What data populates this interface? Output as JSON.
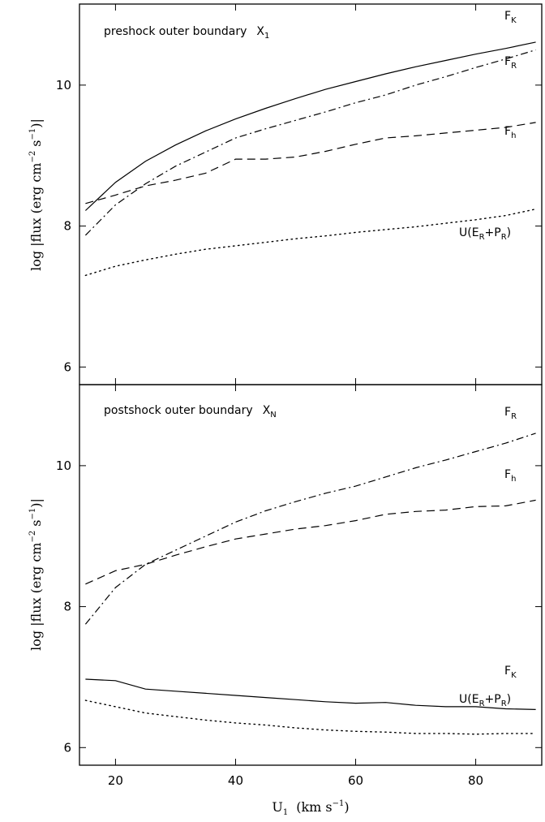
{
  "chart_data": [
    {
      "type": "line",
      "title": "preshock outer boundary",
      "title_symbol": "X",
      "title_symbol_sub": "1",
      "xlabel": "U",
      "xlabel_sub": "1",
      "xlabel_units": "(km s",
      "xlabel_units_sup": "−1",
      "xlabel_units_close": ")",
      "ylabel": "log |flux  (erg cm",
      "ylabel_sup1": "−2",
      "ylabel_mid": " s",
      "ylabel_sup2": "−1",
      "ylabel_close": ")|",
      "xlim": [
        14,
        91
      ],
      "ylim": [
        5.75,
        11.15
      ],
      "xticks": [
        20,
        40,
        60,
        80
      ],
      "yticks": [
        6,
        8,
        10
      ],
      "grid": false,
      "series": [
        {
          "name": "F",
          "sub": "K",
          "style": "solid",
          "x": [
            15,
            20,
            25,
            30,
            35,
            40,
            45,
            50,
            55,
            60,
            65,
            70,
            75,
            80,
            85,
            90
          ],
          "y": [
            8.22,
            8.62,
            8.92,
            9.15,
            9.35,
            9.52,
            9.67,
            9.81,
            9.94,
            10.05,
            10.16,
            10.26,
            10.35,
            10.44,
            10.52,
            10.61
          ]
        },
        {
          "name": "F",
          "sub": "R",
          "style": "dashdot",
          "x": [
            15,
            20,
            25,
            30,
            35,
            40,
            45,
            50,
            55,
            60,
            65,
            70,
            75,
            80,
            85,
            90
          ],
          "y": [
            7.87,
            8.3,
            8.6,
            8.85,
            9.05,
            9.25,
            9.38,
            9.5,
            9.62,
            9.75,
            9.86,
            10.0,
            10.12,
            10.25,
            10.37,
            10.5
          ]
        },
        {
          "name": "F",
          "sub": "h",
          "style": "dashed",
          "x": [
            15,
            20,
            25,
            30,
            35,
            40,
            45,
            50,
            55,
            60,
            65,
            70,
            75,
            80,
            85,
            90
          ],
          "y": [
            8.32,
            8.44,
            8.57,
            8.65,
            8.75,
            8.95,
            8.95,
            8.98,
            9.06,
            9.16,
            9.25,
            9.28,
            9.32,
            9.36,
            9.4,
            9.47
          ]
        },
        {
          "name": "U(E",
          "sub": "R",
          "mid": "+P",
          "sub2": "R",
          "close": ")",
          "style": "dotted",
          "x": [
            15,
            20,
            25,
            30,
            35,
            40,
            45,
            50,
            55,
            60,
            65,
            70,
            75,
            80,
            85,
            90
          ],
          "y": [
            7.3,
            7.43,
            7.52,
            7.6,
            7.67,
            7.72,
            7.77,
            7.82,
            7.86,
            7.91,
            7.95,
            7.99,
            8.04,
            8.09,
            8.15,
            8.24
          ]
        }
      ]
    },
    {
      "type": "line",
      "title": "postshock outer boundary",
      "title_symbol": "X",
      "title_symbol_sub": "N",
      "xlabel": "U",
      "xlabel_sub": "1",
      "xlabel_units": "(km s",
      "xlabel_units_sup": "−1",
      "xlabel_units_close": ")",
      "ylabel": "log |flux  (erg cm",
      "ylabel_sup1": "−2",
      "ylabel_mid": " s",
      "ylabel_sup2": "−1",
      "ylabel_close": ")|",
      "xlim": [
        14,
        91
      ],
      "ylim": [
        5.75,
        11.15
      ],
      "xticks": [
        20,
        40,
        60,
        80
      ],
      "yticks": [
        6,
        8,
        10
      ],
      "grid": false,
      "series": [
        {
          "name": "F",
          "sub": "R",
          "style": "dashdot",
          "x": [
            15,
            20,
            25,
            30,
            35,
            40,
            45,
            50,
            55,
            60,
            65,
            70,
            75,
            80,
            85,
            90
          ],
          "y": [
            7.75,
            8.27,
            8.6,
            8.8,
            9.0,
            9.2,
            9.36,
            9.49,
            9.61,
            9.71,
            9.84,
            9.97,
            10.08,
            10.2,
            10.32,
            10.46
          ]
        },
        {
          "name": "F",
          "sub": "h",
          "style": "dashed",
          "x": [
            15,
            20,
            25,
            30,
            35,
            40,
            45,
            50,
            55,
            60,
            65,
            70,
            75,
            80,
            85,
            90
          ],
          "y": [
            8.32,
            8.51,
            8.6,
            8.73,
            8.85,
            8.96,
            9.03,
            9.1,
            9.15,
            9.22,
            9.31,
            9.35,
            9.37,
            9.42,
            9.43,
            9.51
          ]
        },
        {
          "name": "F",
          "sub": "K",
          "style": "solid",
          "x": [
            15,
            20,
            25,
            30,
            35,
            40,
            45,
            50,
            55,
            60,
            65,
            70,
            75,
            80,
            85,
            90
          ],
          "y": [
            6.97,
            6.95,
            6.83,
            6.8,
            6.77,
            6.74,
            6.71,
            6.68,
            6.65,
            6.63,
            6.64,
            6.6,
            6.58,
            6.58,
            6.55,
            6.54
          ]
        },
        {
          "name": "U(E",
          "sub": "R",
          "mid": "+P",
          "sub2": "R",
          "close": ")",
          "style": "dotted",
          "x": [
            15,
            20,
            25,
            30,
            35,
            40,
            45,
            50,
            55,
            60,
            65,
            70,
            75,
            80,
            85,
            90
          ],
          "y": [
            6.67,
            6.58,
            6.49,
            6.44,
            6.39,
            6.35,
            6.32,
            6.28,
            6.25,
            6.23,
            6.22,
            6.2,
            6.2,
            6.19,
            6.2,
            6.2
          ]
        }
      ]
    }
  ]
}
